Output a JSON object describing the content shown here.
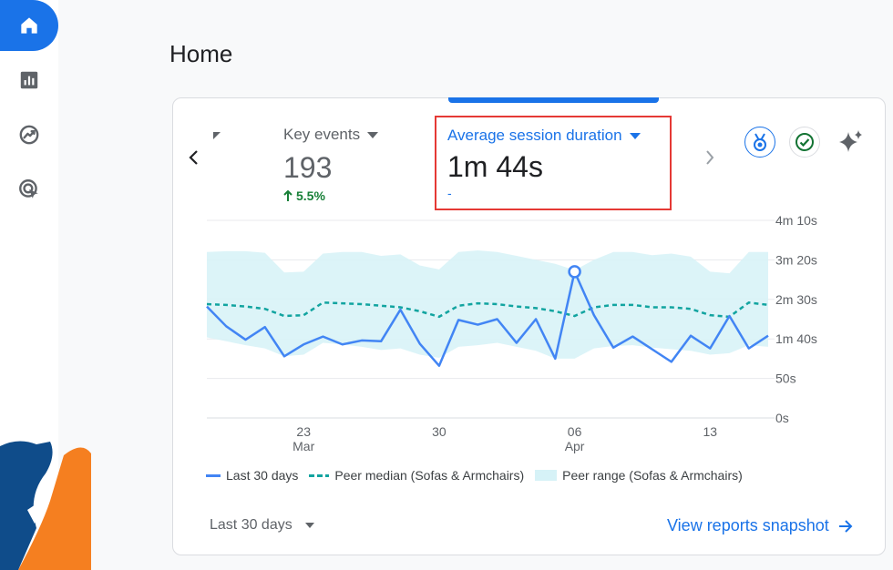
{
  "sidebar": {
    "items": [
      {
        "name": "home",
        "icon": "home-icon",
        "active": true
      },
      {
        "name": "reports",
        "icon": "bar-chart-icon",
        "active": false
      },
      {
        "name": "explore",
        "icon": "explore-icon",
        "active": false
      },
      {
        "name": "advertising",
        "icon": "advertising-icon",
        "active": false
      }
    ]
  },
  "page": {
    "title": "Home"
  },
  "card": {
    "metrics": {
      "key_events": {
        "label": "Key events",
        "value": "193",
        "change": "5.5%"
      },
      "avg_session": {
        "label": "Average session duration",
        "value": "1m 44s",
        "change": "-"
      }
    },
    "date_range": "Last 30 days",
    "view_link": "View reports snapshot"
  },
  "colors": {
    "accent": "#1a73e8",
    "series_line": "#4285f4",
    "median": "#12a4a0",
    "range": "#d6f2f7",
    "positive": "#188038",
    "highlight_box": "#e53935"
  },
  "chart_data": {
    "type": "line",
    "x_ticks": [
      {
        "index": 5,
        "label": "23",
        "sublabel": "Mar"
      },
      {
        "index": 12,
        "label": "30",
        "sublabel": ""
      },
      {
        "index": 19,
        "label": "06",
        "sublabel": "Apr"
      },
      {
        "index": 26,
        "label": "13",
        "sublabel": ""
      }
    ],
    "y_ticks": [
      {
        "value": 0,
        "label": "0s"
      },
      {
        "value": 50,
        "label": "50s"
      },
      {
        "value": 100,
        "label": "1m 40s"
      },
      {
        "value": 150,
        "label": "2m 30s"
      },
      {
        "value": 200,
        "label": "3m 20s"
      },
      {
        "value": 250,
        "label": "4m 10s"
      }
    ],
    "ylim": [
      0,
      250
    ],
    "series": [
      {
        "name": "Last 30 days",
        "style": "solid",
        "values": [
          141,
          116,
          99,
          115,
          78,
          93,
          103,
          93,
          98,
          97,
          137,
          94,
          66,
          124,
          118,
          125,
          95,
          125,
          75,
          185,
          130,
          89,
          103,
          87,
          71,
          104,
          88,
          129,
          88,
          104
        ],
        "highlight_index": 19
      },
      {
        "name": "Peer median (Sofas & Armchairs)",
        "style": "dashed",
        "values": [
          144,
          143,
          141,
          138,
          129,
          130,
          146,
          145,
          144,
          142,
          140,
          135,
          128,
          142,
          145,
          144,
          141,
          139,
          135,
          129,
          140,
          143,
          143,
          140,
          140,
          138,
          130,
          128,
          146,
          143
        ]
      }
    ],
    "range": {
      "name": "Peer range (Sofas & Armchairs)",
      "upper": [
        210,
        211,
        211,
        209,
        184,
        185,
        208,
        210,
        210,
        205,
        207,
        193,
        188,
        210,
        212,
        210,
        205,
        200,
        195,
        187,
        200,
        210,
        210,
        206,
        208,
        204,
        185,
        183,
        210,
        210
      ],
      "lower": [
        102,
        97,
        92,
        88,
        78,
        80,
        95,
        93,
        90,
        86,
        88,
        80,
        76,
        90,
        92,
        95,
        90,
        85,
        75,
        75,
        88,
        91,
        92,
        89,
        87,
        85,
        80,
        82,
        92,
        90
      ]
    },
    "legend": [
      {
        "name": "Last 30 days",
        "swatch": "line"
      },
      {
        "name": "Peer median (Sofas & Armchairs)",
        "swatch": "dash"
      },
      {
        "name": "Peer range (Sofas & Armchairs)",
        "swatch": "area"
      }
    ],
    "grid": true,
    "legend_position": "bottom-left"
  }
}
